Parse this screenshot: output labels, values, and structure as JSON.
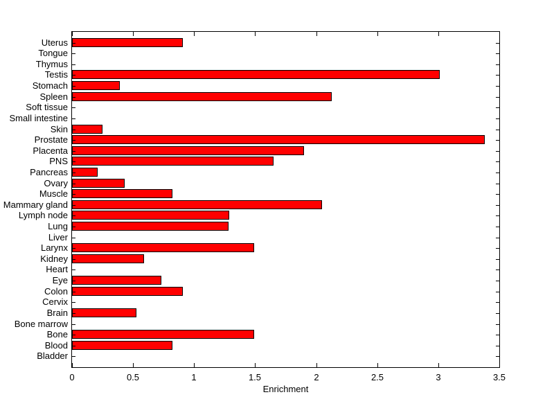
{
  "figure": {
    "background_color": "#ffffff",
    "axis_color": "#000000"
  },
  "chart_data": {
    "type": "bar",
    "orientation": "horizontal",
    "title": "",
    "xlabel": "Enrichment",
    "ylabel": "",
    "categories": [
      "Uterus",
      "Tongue",
      "Thymus",
      "Testis",
      "Stomach",
      "Spleen",
      "Soft tissue",
      "Small intestine",
      "Skin",
      "Prostate",
      "Placenta",
      "PNS",
      "Pancreas",
      "Ovary",
      "Muscle",
      "Mammary gland",
      "Lymph node",
      "Lung",
      "Liver",
      "Larynx",
      "Kidney",
      "Heart",
      "Eye",
      "Colon",
      "Cervix",
      "Brain",
      "Bone marrow",
      "Bone",
      "Blood",
      "Bladder"
    ],
    "values": [
      0.91,
      0,
      0,
      3.01,
      0.39,
      2.13,
      0,
      0,
      0.25,
      3.38,
      1.9,
      1.65,
      0.21,
      0.43,
      0.82,
      2.05,
      1.29,
      1.28,
      0,
      1.49,
      0.59,
      0,
      0.73,
      0.91,
      0,
      0.53,
      0,
      1.49,
      0.82,
      0
    ],
    "xlim": [
      0,
      3.5
    ],
    "xticks": [
      0,
      0.5,
      1,
      1.5,
      2,
      2.5,
      3,
      3.5
    ],
    "xtick_labels": [
      "0",
      "0.5",
      "1",
      "1.5",
      "2",
      "2.5",
      "3",
      "3.5"
    ],
    "bar_color": "#ff0000",
    "bar_edge_color": "#000000",
    "grid": false,
    "legend": "none",
    "box": true,
    "tick_direction": "in"
  }
}
